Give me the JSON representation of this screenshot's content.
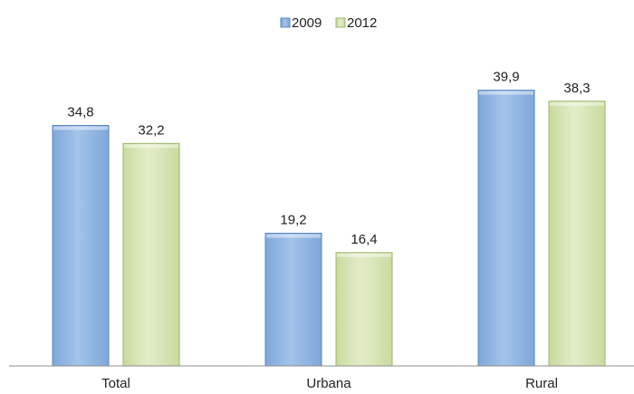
{
  "chart_data": {
    "type": "bar",
    "categories": [
      "Total",
      "Urbana",
      "Rural"
    ],
    "series": [
      {
        "name": "2009",
        "values": [
          34.8,
          19.2,
          39.9
        ],
        "labels": [
          "34,8",
          "19,2",
          "39,9"
        ],
        "color": "#8db4e2",
        "edge": "#5a86c0"
      },
      {
        "name": "2012",
        "values": [
          32.2,
          16.4,
          38.3
        ],
        "labels": [
          "32,2",
          "16,4",
          "38,3"
        ],
        "color": "#d7e4bc",
        "edge": "#9cb56a"
      }
    ],
    "ylim": [
      0,
      40.5
    ],
    "grid": false,
    "legend": "top-center",
    "xlabel": "",
    "ylabel": "",
    "title": ""
  }
}
